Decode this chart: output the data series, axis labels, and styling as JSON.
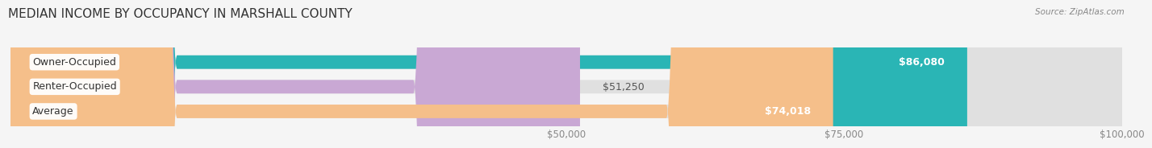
{
  "title": "MEDIAN INCOME BY OCCUPANCY IN MARSHALL COUNTY",
  "source": "Source: ZipAtlas.com",
  "categories": [
    "Owner-Occupied",
    "Renter-Occupied",
    "Average"
  ],
  "values": [
    86080,
    51250,
    74018
  ],
  "labels": [
    "$86,080",
    "$51,250",
    "$74,018"
  ],
  "bar_colors": [
    "#2ab5b5",
    "#c9a8d4",
    "#f5bf8a"
  ],
  "bar_bg_color": "#e0e0e0",
  "background_color": "#f5f5f5",
  "xmin": 0,
  "xmax": 100000,
  "xticks": [
    0,
    50000,
    75000,
    100000
  ],
  "xtick_labels": [
    "",
    "$50,000",
    "$75,000",
    "$100,000"
  ],
  "title_fontsize": 11,
  "label_fontsize": 9,
  "tick_fontsize": 8.5,
  "bar_height": 0.55,
  "figsize": [
    14.06,
    1.96
  ]
}
